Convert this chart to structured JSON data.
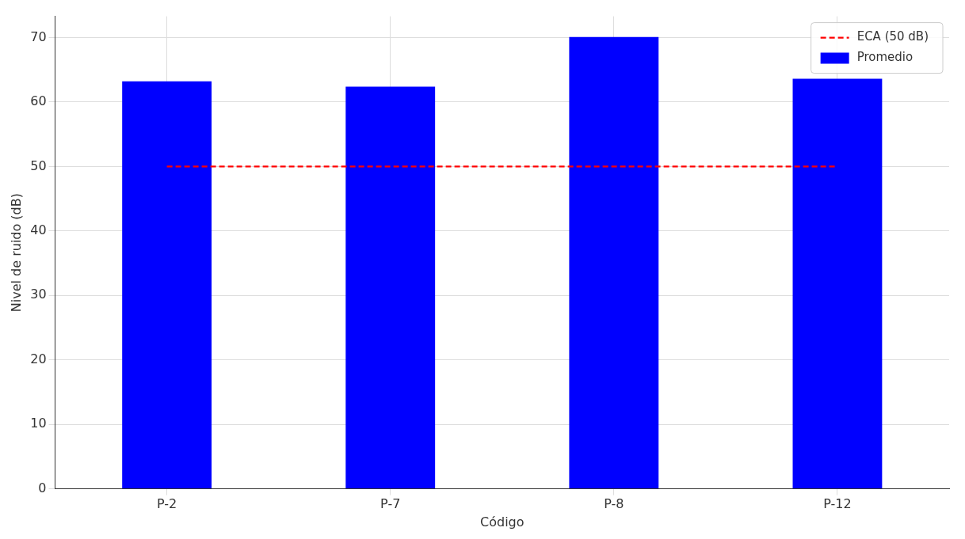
{
  "chart_data": {
    "type": "bar",
    "xlabel": "Código",
    "ylabel": "Nivel de ruido (dB)",
    "categories": [
      "P-2",
      "P-7",
      "P-8",
      "P-12"
    ],
    "series": [
      {
        "name": "ECA (50 dB)",
        "type": "line",
        "color": "#ff0000",
        "values": [
          50,
          50,
          50,
          50
        ],
        "line_style": "dashed",
        "marker": "none"
      },
      {
        "name": "Promedio",
        "color": "#0000ff",
        "values": [
          63.2,
          62.4,
          70.1,
          63.6
        ]
      }
    ],
    "ylim": [
      0,
      73.3
    ],
    "yticks": [
      0,
      10,
      20,
      30,
      40,
      50,
      60,
      70
    ],
    "grid": true,
    "legend": "top right"
  }
}
